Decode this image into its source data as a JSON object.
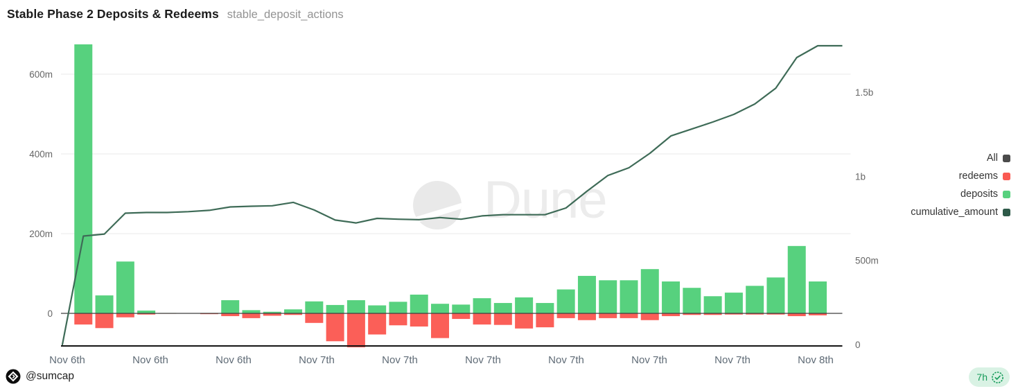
{
  "header": {
    "title": "Stable Phase 2 Deposits & Redeems",
    "query_name": "stable_deposit_actions"
  },
  "watermark": {
    "text": "Dune"
  },
  "legend": {
    "position": "right",
    "items": [
      {
        "label": "All",
        "color": "#4b4b4b"
      },
      {
        "label": "redeems",
        "color": "#fa5a52"
      },
      {
        "label": "deposits",
        "color": "#57d17e"
      },
      {
        "label": "cumulative_amount",
        "color": "#2e5a49"
      }
    ]
  },
  "footer": {
    "author_handle": "@sumcap",
    "age_label": "7h"
  },
  "chart_data": {
    "type": "bar",
    "subtype": "bar+line combo, dual y-axis",
    "title": "Stable Phase 2 Deposits & Redeems",
    "x_tick_labels": [
      "Nov 6th",
      "Nov 6th",
      "Nov 6th",
      "Nov 7th",
      "Nov 7th",
      "Nov 7th",
      "Nov 7th",
      "Nov 7th",
      "Nov 7th",
      "Nov 8th"
    ],
    "left_axis": {
      "unit": "millions",
      "tick_labels": [
        "600m",
        "400m",
        "200m",
        "0"
      ],
      "tick_values": [
        600,
        400,
        200,
        0
      ],
      "range": [
        -84,
        673
      ],
      "grid": true
    },
    "right_axis": {
      "unit": "millions",
      "tick_labels": [
        "1.5b",
        "1b",
        "500m",
        "0"
      ],
      "tick_values": [
        1500,
        1000,
        500,
        0
      ],
      "range": [
        -20,
        1800
      ],
      "grid": false
    },
    "series": [
      {
        "name": "deposits",
        "type": "bar",
        "axis": "left",
        "color": "#57d17e",
        "values": [
          0,
          690,
          45,
          130,
          7,
          1,
          0,
          1,
          33,
          8,
          4,
          10,
          30,
          21,
          33,
          20,
          29,
          47,
          24,
          22,
          38,
          26,
          40,
          26,
          60,
          94,
          83,
          83,
          111,
          80,
          64,
          43,
          52,
          69,
          90,
          169,
          80
        ]
      },
      {
        "name": "redeems",
        "type": "bar",
        "axis": "left",
        "color": "#fb5f58",
        "values": [
          0,
          -28,
          -37,
          -10,
          -3,
          -1,
          0,
          -2,
          -7,
          -12,
          -6,
          -4,
          -24,
          -70,
          -87,
          -53,
          -30,
          -33,
          -62,
          -14,
          -28,
          -29,
          -38,
          -35,
          -12,
          -17,
          -12,
          -12,
          -17,
          -7,
          -4,
          -4,
          -3,
          -3,
          -3,
          -7,
          -5
        ]
      },
      {
        "name": "cumulative_amount",
        "type": "line",
        "axis": "right",
        "color": "#3e6b57",
        "values": [
          0,
          645,
          657,
          781,
          785,
          785,
          790,
          798,
          818,
          822,
          825,
          845,
          800,
          740,
          723,
          750,
          745,
          742,
          755,
          745,
          765,
          772,
          772,
          772,
          812,
          911,
          1005,
          1051,
          1137,
          1240,
          1281,
          1323,
          1368,
          1430,
          1524,
          1706,
          1776
        ]
      }
    ],
    "colors": {
      "grid": "#ededed",
      "zero_line": "#3f3f3f",
      "axis_line": "#161616",
      "tick_text": "#666666",
      "x_label_text": "#5f6b76"
    }
  }
}
